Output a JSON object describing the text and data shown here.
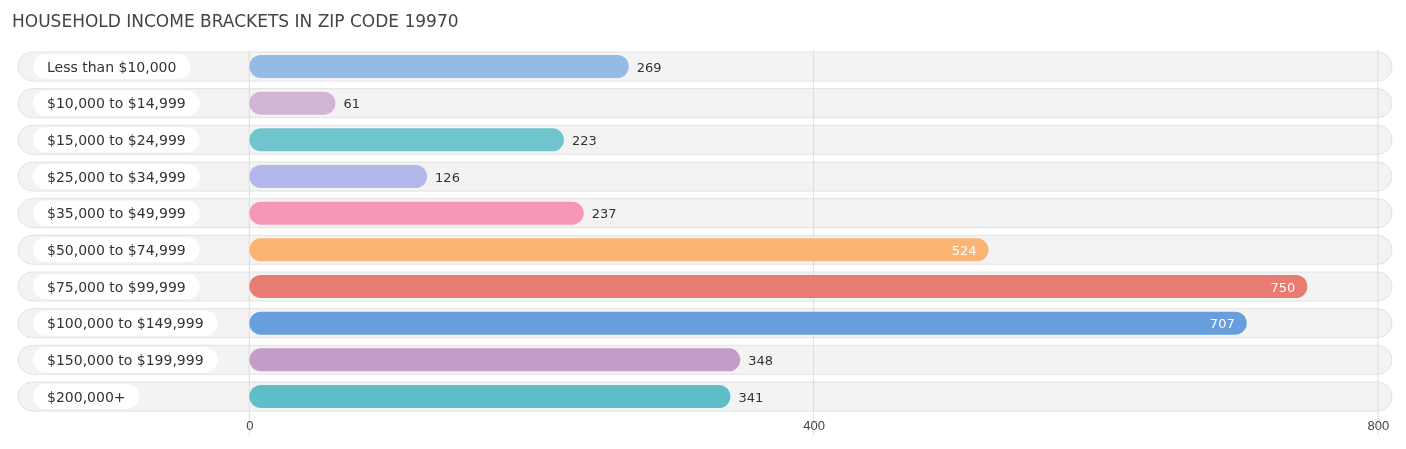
{
  "chart_data": {
    "type": "bar",
    "orientation": "horizontal",
    "title": "HOUSEHOLD INCOME BRACKETS IN ZIP CODE 19970",
    "categories": [
      "Less than $10,000",
      "$10,000 to $14,999",
      "$15,000 to $24,999",
      "$25,000 to $34,999",
      "$35,000 to $49,999",
      "$50,000 to $74,999",
      "$75,000 to $99,999",
      "$100,000 to $149,999",
      "$150,000 to $199,999",
      "$200,000+"
    ],
    "values": [
      269,
      61,
      223,
      126,
      237,
      524,
      750,
      707,
      348,
      341
    ],
    "colors": [
      "#93bbe6",
      "#d2b4d4",
      "#6fc4ce",
      "#b2b9ea",
      "#f797b5",
      "#fbb474",
      "#e87c72",
      "#679fdc",
      "#c39dc8",
      "#5fbfc9"
    ],
    "xlim": [
      -164,
      810
    ],
    "xticks": [
      0,
      400,
      800
    ],
    "grid": "x",
    "data_labels": true
  }
}
